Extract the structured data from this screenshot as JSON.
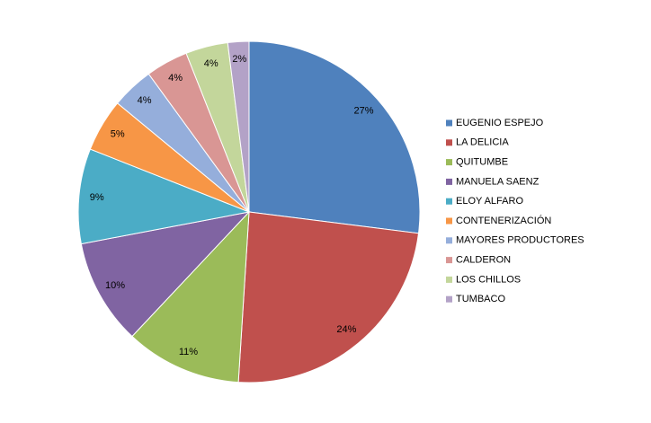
{
  "chart_data": {
    "type": "pie",
    "categories": [
      "EUGENIO ESPEJO",
      "LA DELICIA",
      "QUITUMBE",
      "MANUELA SAENZ",
      "ELOY ALFARO",
      "CONTENERIZACIÓN",
      "MAYORES PRODUCTORES",
      "CALDERON",
      "LOS CHILLOS",
      "TUMBACO"
    ],
    "values": [
      27,
      24,
      11,
      10,
      9,
      5,
      4,
      4,
      4,
      2
    ],
    "value_labels": [
      "27%",
      "24%",
      "11%",
      "10%",
      "9%",
      "5%",
      "4%",
      "4%",
      "4%",
      "2%"
    ],
    "colors": [
      "#4F81BD",
      "#C0504D",
      "#9BBB59",
      "#8064A2",
      "#4BACC6",
      "#F79646",
      "#95AEDB",
      "#D99694",
      "#C3D69B",
      "#B3A2C7"
    ],
    "legend": "right"
  }
}
